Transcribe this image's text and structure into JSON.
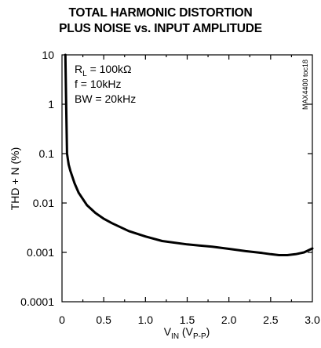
{
  "chart_data": {
    "type": "line",
    "title_lines": [
      "TOTAL HARMONIC DISTORTION",
      "PLUS NOISE vs. INPUT AMPLITUDE"
    ],
    "xlabel": {
      "main": "V",
      "main_sub": "IN",
      "unit_open": " (V",
      "unit_sub": "P-P",
      "unit_close": ")"
    },
    "ylabel": "THD + N (%)",
    "xlim": [
      0,
      3.0
    ],
    "ylim": [
      0.0001,
      10
    ],
    "y_scale": "log",
    "x_ticks": [
      "0",
      "0.5",
      "1.0",
      "1.5",
      "2.0",
      "2.5",
      "3.0"
    ],
    "y_ticks": [
      "10",
      "1",
      "0.1",
      "0.01",
      "0.001",
      "0.0001"
    ],
    "grid": false,
    "annotations": {
      "rl_main": "R",
      "rl_sub": "L",
      "rl_rest": " = 100kΩ",
      "freq": "f = 10kHz",
      "bw": "BW = 20kHz",
      "part_id": "MAX4400 toc18"
    },
    "series": [
      {
        "x": [
          0.04,
          0.05,
          0.06,
          0.08,
          0.1,
          0.15,
          0.2,
          0.3,
          0.4,
          0.5,
          0.6,
          0.8,
          1.0,
          1.2,
          1.5,
          1.8,
          2.0,
          2.2,
          2.4,
          2.5,
          2.6,
          2.7,
          2.8,
          2.9,
          3.0
        ],
        "y": [
          10,
          1.0,
          0.1,
          0.06,
          0.045,
          0.025,
          0.016,
          0.009,
          0.0063,
          0.0048,
          0.0039,
          0.0027,
          0.0021,
          0.0017,
          0.00145,
          0.0013,
          0.00118,
          0.00106,
          0.00097,
          0.00092,
          0.00088,
          0.00088,
          0.00092,
          0.001,
          0.0012
        ]
      }
    ]
  }
}
